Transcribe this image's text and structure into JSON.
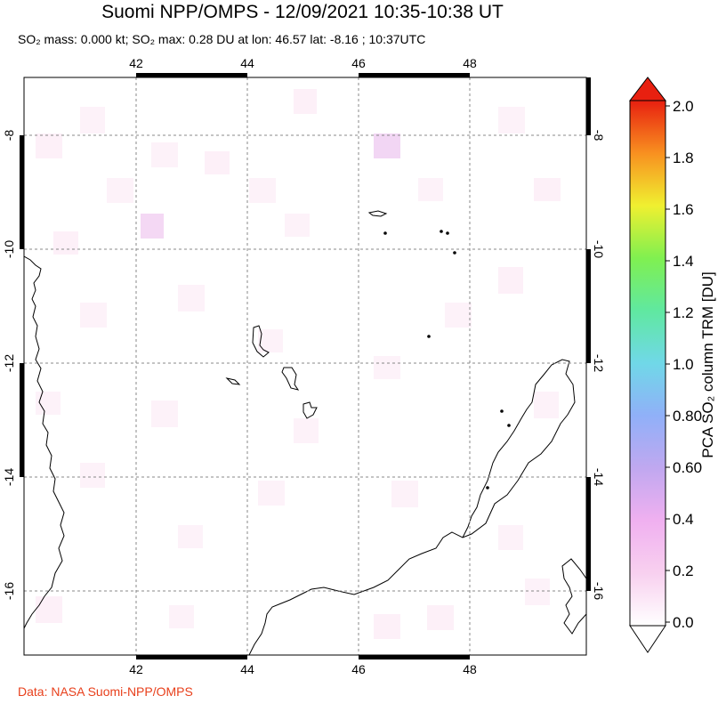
{
  "title": "Suomi NPP/OMPS - 12/09/2021 10:35-10:38 UT",
  "subtitle": {
    "text": "SO₂ mass: 0.000 kt; SO₂ max: 0.28 DU at lon: 46.57 lat: -8.16 ; 10:37UTC"
  },
  "credit": "Data: NASA Suomi-NPP/OMPS",
  "map": {
    "lon_ticks": [
      "42",
      "44",
      "46",
      "48"
    ],
    "lat_ticks": [
      "-8",
      "-10",
      "-12",
      "-14",
      "-16"
    ],
    "lon_values": [
      42,
      44,
      46,
      48
    ],
    "lat_values": [
      -8,
      -10,
      -12,
      -14,
      -16
    ],
    "lon_range": [
      40,
      50.2
    ],
    "lat_range": [
      -17.2,
      -7.0
    ]
  },
  "colorbar": {
    "label": "PCA SO₂ column TRM [DU]",
    "ticks": [
      "2.0",
      "1.8",
      "1.6",
      "1.4",
      "1.2",
      "1.0",
      "0.80",
      "0.60",
      "0.4",
      "0.2",
      "0.0"
    ],
    "range": [
      0.0,
      2.0
    ],
    "colors": [
      "#ffffff",
      "#f8d0f0",
      "#e8a8f0",
      "#a8a0f0",
      "#80c8f0",
      "#70e0c0",
      "#80f080",
      "#d8f040",
      "#f8c020",
      "#f86020",
      "#e82010"
    ]
  }
}
